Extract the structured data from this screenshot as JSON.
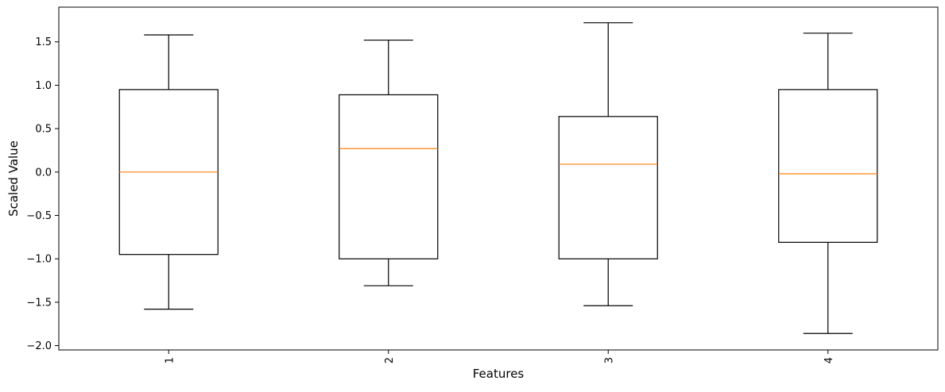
{
  "chart_data": {
    "type": "box",
    "title": "",
    "xlabel": "Features",
    "ylabel": "Scaled Value",
    "categories": [
      "1",
      "2",
      "3",
      "4"
    ],
    "x_tick_rotation": 90,
    "grid": false,
    "ylim": [
      -2.05,
      1.9
    ],
    "yticks": [
      -2.0,
      -1.5,
      -1.0,
      -0.5,
      0.0,
      0.5,
      1.0,
      1.5
    ],
    "ytick_labels": [
      "−2.0",
      "−1.5",
      "−1.0",
      "−0.5",
      "0.0",
      "0.5",
      "1.0",
      "1.5"
    ],
    "boxes": [
      {
        "category": "1",
        "whisker_low": -1.58,
        "q1": -0.95,
        "median": 0.0,
        "q3": 0.95,
        "whisker_high": 1.58
      },
      {
        "category": "2",
        "whisker_low": -1.31,
        "q1": -1.0,
        "median": 0.27,
        "q3": 0.89,
        "whisker_high": 1.52
      },
      {
        "category": "3",
        "whisker_low": -1.54,
        "q1": -1.0,
        "median": 0.09,
        "q3": 0.64,
        "whisker_high": 1.72
      },
      {
        "category": "4",
        "whisker_low": -1.86,
        "q1": -0.81,
        "median": -0.02,
        "q3": 0.95,
        "whisker_high": 1.6
      }
    ],
    "colors": {
      "box": "#000000",
      "median": "#ff7f0e",
      "axes": "#000000",
      "background": "#ffffff"
    }
  }
}
